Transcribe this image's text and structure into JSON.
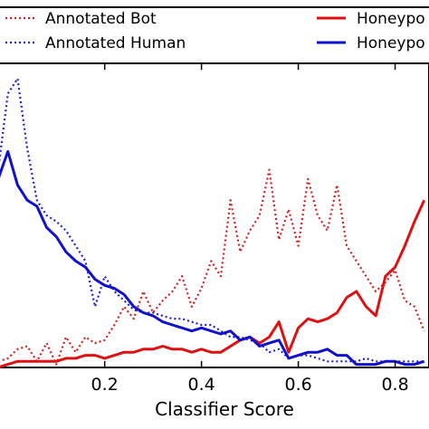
{
  "chart_data": {
    "type": "line",
    "xlabel": "Classifier Score",
    "ylabel": "",
    "xlim": [
      -0.02,
      0.87
    ],
    "ylim": [
      0,
      1
    ],
    "x_ticks": [
      0.2,
      0.4,
      0.6,
      0.8
    ],
    "x_tick_labels": [
      "0.2",
      "0.4",
      "0.6",
      "0.8"
    ],
    "grid": false,
    "legend_position": "top",
    "series": [
      {
        "name": "Annotated Bot",
        "color": "#cc2222",
        "style": "dotted",
        "x": [
          -0.02,
          0.0,
          0.02,
          0.04,
          0.06,
          0.08,
          0.1,
          0.12,
          0.14,
          0.16,
          0.18,
          0.2,
          0.22,
          0.24,
          0.26,
          0.28,
          0.3,
          0.32,
          0.34,
          0.36,
          0.38,
          0.4,
          0.42,
          0.44,
          0.46,
          0.48,
          0.5,
          0.52,
          0.54,
          0.56,
          0.58,
          0.6,
          0.62,
          0.64,
          0.66,
          0.68,
          0.7,
          0.72,
          0.74,
          0.76,
          0.78,
          0.8,
          0.82,
          0.84,
          0.86
        ],
        "values": [
          0.02,
          0.03,
          0.06,
          0.07,
          0.02,
          0.08,
          0.01,
          0.1,
          0.05,
          0.1,
          0.08,
          0.09,
          0.14,
          0.2,
          0.16,
          0.25,
          0.18,
          0.22,
          0.25,
          0.3,
          0.2,
          0.26,
          0.35,
          0.3,
          0.55,
          0.38,
          0.45,
          0.5,
          0.65,
          0.42,
          0.52,
          0.4,
          0.62,
          0.5,
          0.45,
          0.6,
          0.4,
          0.35,
          0.3,
          0.25,
          0.28,
          0.32,
          0.22,
          0.2,
          0.12
        ]
      },
      {
        "name": "Annotated Human",
        "color": "#2222cc",
        "style": "dotted",
        "x": [
          -0.02,
          0.0,
          0.02,
          0.04,
          0.06,
          0.08,
          0.1,
          0.12,
          0.14,
          0.16,
          0.18,
          0.2,
          0.22,
          0.24,
          0.26,
          0.28,
          0.3,
          0.32,
          0.34,
          0.36,
          0.38,
          0.4,
          0.42,
          0.44,
          0.46,
          0.48,
          0.5,
          0.52,
          0.54,
          0.56,
          0.58,
          0.6,
          0.62,
          0.64,
          0.66,
          0.68,
          0.7,
          0.72,
          0.74,
          0.76,
          0.78,
          0.8,
          0.82,
          0.84,
          0.86
        ],
        "values": [
          0.65,
          0.9,
          0.95,
          0.72,
          0.55,
          0.5,
          0.48,
          0.45,
          0.4,
          0.35,
          0.2,
          0.3,
          0.25,
          0.22,
          0.19,
          0.18,
          0.18,
          0.17,
          0.16,
          0.16,
          0.15,
          0.14,
          0.14,
          0.12,
          0.1,
          0.1,
          0.09,
          0.08,
          0.05,
          0.06,
          0.03,
          0.04,
          0.04,
          0.03,
          0.02,
          0.02,
          0.02,
          0.02,
          0.03,
          0.02,
          0.02,
          0.02,
          0.02,
          0.02,
          0.02
        ]
      },
      {
        "name": "Honeypo",
        "color": "#dd1111",
        "style": "solid",
        "x": [
          -0.02,
          0.0,
          0.02,
          0.04,
          0.06,
          0.08,
          0.1,
          0.12,
          0.14,
          0.16,
          0.18,
          0.2,
          0.22,
          0.24,
          0.26,
          0.28,
          0.3,
          0.32,
          0.34,
          0.36,
          0.38,
          0.4,
          0.42,
          0.44,
          0.46,
          0.48,
          0.5,
          0.52,
          0.54,
          0.56,
          0.58,
          0.6,
          0.62,
          0.64,
          0.66,
          0.68,
          0.7,
          0.72,
          0.74,
          0.76,
          0.78,
          0.8,
          0.82,
          0.84,
          0.86
        ],
        "values": [
          0.0,
          0.01,
          0.02,
          0.02,
          0.02,
          0.02,
          0.02,
          0.03,
          0.03,
          0.04,
          0.04,
          0.03,
          0.04,
          0.05,
          0.05,
          0.06,
          0.06,
          0.07,
          0.06,
          0.06,
          0.05,
          0.06,
          0.05,
          0.05,
          0.07,
          0.09,
          0.1,
          0.08,
          0.1,
          0.15,
          0.05,
          0.13,
          0.16,
          0.15,
          0.16,
          0.18,
          0.23,
          0.25,
          0.2,
          0.17,
          0.3,
          0.33,
          0.4,
          0.48,
          0.55
        ]
      },
      {
        "name": "Honeypo",
        "color": "#1111cc",
        "style": "solid",
        "x": [
          -0.02,
          0.0,
          0.02,
          0.04,
          0.06,
          0.08,
          0.1,
          0.12,
          0.14,
          0.16,
          0.18,
          0.2,
          0.22,
          0.24,
          0.26,
          0.28,
          0.3,
          0.32,
          0.34,
          0.36,
          0.38,
          0.4,
          0.42,
          0.44,
          0.46,
          0.48,
          0.5,
          0.52,
          0.54,
          0.56,
          0.58,
          0.6,
          0.62,
          0.64,
          0.66,
          0.68,
          0.7,
          0.72,
          0.74,
          0.76,
          0.78,
          0.8,
          0.82,
          0.84,
          0.86
        ],
        "values": [
          0.62,
          0.71,
          0.6,
          0.55,
          0.53,
          0.46,
          0.43,
          0.38,
          0.35,
          0.33,
          0.29,
          0.27,
          0.26,
          0.24,
          0.2,
          0.18,
          0.17,
          0.15,
          0.14,
          0.13,
          0.12,
          0.13,
          0.12,
          0.11,
          0.12,
          0.09,
          0.1,
          0.07,
          0.08,
          0.09,
          0.03,
          0.04,
          0.05,
          0.05,
          0.06,
          0.04,
          0.04,
          0.01,
          0.01,
          0.01,
          0.02,
          0.02,
          0.01,
          0.01,
          0.02
        ]
      }
    ],
    "legend": [
      {
        "label": "Annotated Bot",
        "color": "#cc2222",
        "style": "dotted"
      },
      {
        "label": "Annotated Human",
        "color": "#2222cc",
        "style": "dotted"
      },
      {
        "label": "Honeypo",
        "color": "#dd1111",
        "style": "solid"
      },
      {
        "label": "Honeypo",
        "color": "#1111cc",
        "style": "solid"
      }
    ]
  }
}
